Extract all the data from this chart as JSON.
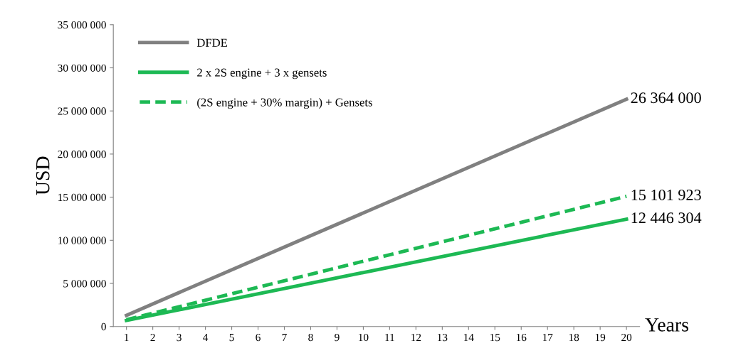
{
  "chart_data": {
    "type": "line",
    "xlabel": "Years",
    "ylabel": "USD",
    "x": [
      1,
      20
    ],
    "xlim": [
      0.5,
      20.5
    ],
    "xticks": [
      1,
      2,
      3,
      4,
      5,
      6,
      7,
      8,
      9,
      10,
      11,
      12,
      13,
      14,
      15,
      16,
      17,
      18,
      19,
      20
    ],
    "ylim": [
      0,
      35000000
    ],
    "yticks": [
      {
        "value": 0,
        "label": "0"
      },
      {
        "value": 5000000,
        "label": "5 000 000"
      },
      {
        "value": 10000000,
        "label": "10 000 000"
      },
      {
        "value": 15000000,
        "label": "15 000 000"
      },
      {
        "value": 20000000,
        "label": "20 000 000"
      },
      {
        "value": 25000000,
        "label": "25 000 000"
      },
      {
        "value": 30000000,
        "label": "30 000 000"
      },
      {
        "value": 35000000,
        "label": "35 000 000"
      }
    ],
    "grid": false,
    "legend": "top left",
    "marker": "none",
    "series": [
      {
        "name": "DFDE",
        "color": "#808080",
        "values": [
          1300000,
          26364000
        ],
        "value_labels": [
          null,
          "26 364 000"
        ],
        "line_style": "solid"
      },
      {
        "name": "2 x 2S engine + 3 x gensets",
        "color": "#1db954",
        "values": [
          700000,
          12446304
        ],
        "value_labels": [
          null,
          "12 446 304"
        ],
        "line_style": "solid"
      },
      {
        "name": "(2S engine + 30% margin) + Gensets",
        "color": "#1db954",
        "values": [
          800000,
          15101923
        ],
        "value_labels": [
          null,
          "15 101 923"
        ],
        "line_style": "dashed"
      }
    ]
  }
}
